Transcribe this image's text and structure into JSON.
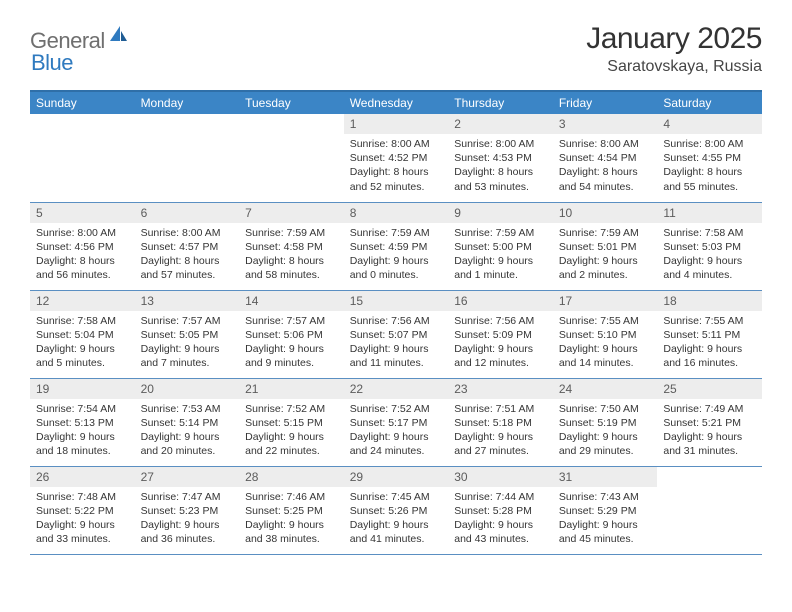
{
  "brand": {
    "part1": "General",
    "part2": "Blue"
  },
  "title": "January 2025",
  "subtitle": "Saratovskaya, Russia",
  "colors": {
    "header_bg": "#3b85c6",
    "header_border": "#2f6fa8",
    "row_border": "#5a8fc2",
    "daynum_bg": "#ededed",
    "logo_gray": "#6f6f6f",
    "logo_blue": "#2f7abf"
  },
  "weekdays": [
    "Sunday",
    "Monday",
    "Tuesday",
    "Wednesday",
    "Thursday",
    "Friday",
    "Saturday"
  ],
  "weeks": [
    [
      {
        "n": "",
        "sr": "",
        "ss": "",
        "dl": ""
      },
      {
        "n": "",
        "sr": "",
        "ss": "",
        "dl": ""
      },
      {
        "n": "",
        "sr": "",
        "ss": "",
        "dl": ""
      },
      {
        "n": "1",
        "sr": "Sunrise: 8:00 AM",
        "ss": "Sunset: 4:52 PM",
        "dl": "Daylight: 8 hours and 52 minutes."
      },
      {
        "n": "2",
        "sr": "Sunrise: 8:00 AM",
        "ss": "Sunset: 4:53 PM",
        "dl": "Daylight: 8 hours and 53 minutes."
      },
      {
        "n": "3",
        "sr": "Sunrise: 8:00 AM",
        "ss": "Sunset: 4:54 PM",
        "dl": "Daylight: 8 hours and 54 minutes."
      },
      {
        "n": "4",
        "sr": "Sunrise: 8:00 AM",
        "ss": "Sunset: 4:55 PM",
        "dl": "Daylight: 8 hours and 55 minutes."
      }
    ],
    [
      {
        "n": "5",
        "sr": "Sunrise: 8:00 AM",
        "ss": "Sunset: 4:56 PM",
        "dl": "Daylight: 8 hours and 56 minutes."
      },
      {
        "n": "6",
        "sr": "Sunrise: 8:00 AM",
        "ss": "Sunset: 4:57 PM",
        "dl": "Daylight: 8 hours and 57 minutes."
      },
      {
        "n": "7",
        "sr": "Sunrise: 7:59 AM",
        "ss": "Sunset: 4:58 PM",
        "dl": "Daylight: 8 hours and 58 minutes."
      },
      {
        "n": "8",
        "sr": "Sunrise: 7:59 AM",
        "ss": "Sunset: 4:59 PM",
        "dl": "Daylight: 9 hours and 0 minutes."
      },
      {
        "n": "9",
        "sr": "Sunrise: 7:59 AM",
        "ss": "Sunset: 5:00 PM",
        "dl": "Daylight: 9 hours and 1 minute."
      },
      {
        "n": "10",
        "sr": "Sunrise: 7:59 AM",
        "ss": "Sunset: 5:01 PM",
        "dl": "Daylight: 9 hours and 2 minutes."
      },
      {
        "n": "11",
        "sr": "Sunrise: 7:58 AM",
        "ss": "Sunset: 5:03 PM",
        "dl": "Daylight: 9 hours and 4 minutes."
      }
    ],
    [
      {
        "n": "12",
        "sr": "Sunrise: 7:58 AM",
        "ss": "Sunset: 5:04 PM",
        "dl": "Daylight: 9 hours and 5 minutes."
      },
      {
        "n": "13",
        "sr": "Sunrise: 7:57 AM",
        "ss": "Sunset: 5:05 PM",
        "dl": "Daylight: 9 hours and 7 minutes."
      },
      {
        "n": "14",
        "sr": "Sunrise: 7:57 AM",
        "ss": "Sunset: 5:06 PM",
        "dl": "Daylight: 9 hours and 9 minutes."
      },
      {
        "n": "15",
        "sr": "Sunrise: 7:56 AM",
        "ss": "Sunset: 5:07 PM",
        "dl": "Daylight: 9 hours and 11 minutes."
      },
      {
        "n": "16",
        "sr": "Sunrise: 7:56 AM",
        "ss": "Sunset: 5:09 PM",
        "dl": "Daylight: 9 hours and 12 minutes."
      },
      {
        "n": "17",
        "sr": "Sunrise: 7:55 AM",
        "ss": "Sunset: 5:10 PM",
        "dl": "Daylight: 9 hours and 14 minutes."
      },
      {
        "n": "18",
        "sr": "Sunrise: 7:55 AM",
        "ss": "Sunset: 5:11 PM",
        "dl": "Daylight: 9 hours and 16 minutes."
      }
    ],
    [
      {
        "n": "19",
        "sr": "Sunrise: 7:54 AM",
        "ss": "Sunset: 5:13 PM",
        "dl": "Daylight: 9 hours and 18 minutes."
      },
      {
        "n": "20",
        "sr": "Sunrise: 7:53 AM",
        "ss": "Sunset: 5:14 PM",
        "dl": "Daylight: 9 hours and 20 minutes."
      },
      {
        "n": "21",
        "sr": "Sunrise: 7:52 AM",
        "ss": "Sunset: 5:15 PM",
        "dl": "Daylight: 9 hours and 22 minutes."
      },
      {
        "n": "22",
        "sr": "Sunrise: 7:52 AM",
        "ss": "Sunset: 5:17 PM",
        "dl": "Daylight: 9 hours and 24 minutes."
      },
      {
        "n": "23",
        "sr": "Sunrise: 7:51 AM",
        "ss": "Sunset: 5:18 PM",
        "dl": "Daylight: 9 hours and 27 minutes."
      },
      {
        "n": "24",
        "sr": "Sunrise: 7:50 AM",
        "ss": "Sunset: 5:19 PM",
        "dl": "Daylight: 9 hours and 29 minutes."
      },
      {
        "n": "25",
        "sr": "Sunrise: 7:49 AM",
        "ss": "Sunset: 5:21 PM",
        "dl": "Daylight: 9 hours and 31 minutes."
      }
    ],
    [
      {
        "n": "26",
        "sr": "Sunrise: 7:48 AM",
        "ss": "Sunset: 5:22 PM",
        "dl": "Daylight: 9 hours and 33 minutes."
      },
      {
        "n": "27",
        "sr": "Sunrise: 7:47 AM",
        "ss": "Sunset: 5:23 PM",
        "dl": "Daylight: 9 hours and 36 minutes."
      },
      {
        "n": "28",
        "sr": "Sunrise: 7:46 AM",
        "ss": "Sunset: 5:25 PM",
        "dl": "Daylight: 9 hours and 38 minutes."
      },
      {
        "n": "29",
        "sr": "Sunrise: 7:45 AM",
        "ss": "Sunset: 5:26 PM",
        "dl": "Daylight: 9 hours and 41 minutes."
      },
      {
        "n": "30",
        "sr": "Sunrise: 7:44 AM",
        "ss": "Sunset: 5:28 PM",
        "dl": "Daylight: 9 hours and 43 minutes."
      },
      {
        "n": "31",
        "sr": "Sunrise: 7:43 AM",
        "ss": "Sunset: 5:29 PM",
        "dl": "Daylight: 9 hours and 45 minutes."
      },
      {
        "n": "",
        "sr": "",
        "ss": "",
        "dl": ""
      }
    ]
  ]
}
